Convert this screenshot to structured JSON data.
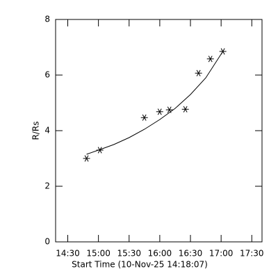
{
  "chart_data": {
    "type": "scatter",
    "xlabel": "Start Time (10-Nov-25 14:18:07)",
    "ylabel": "R/Rs",
    "xlim": [
      858.1,
      1060
    ],
    "xticks": [
      {
        "value": 870,
        "label": "14:30"
      },
      {
        "value": 900,
        "label": "15:00"
      },
      {
        "value": 930,
        "label": "15:30"
      },
      {
        "value": 960,
        "label": "16:00"
      },
      {
        "value": 990,
        "label": "16:30"
      },
      {
        "value": 1020,
        "label": "17:00"
      },
      {
        "value": 1050,
        "label": "17:30"
      }
    ],
    "ylim": [
      0,
      8
    ],
    "yticks": [
      0,
      2,
      4,
      6,
      8
    ],
    "series": [
      {
        "mode": "markers",
        "color": "#000000",
        "x": [
          888.4,
          901.4,
          944.9,
          959.9,
          969.4,
          985.0,
          997.9,
          1009.5,
          1021.7
        ],
        "values": [
          3.0,
          3.3,
          4.47,
          4.68,
          4.75,
          4.77,
          6.07,
          6.58,
          6.85
        ]
      },
      {
        "mode": "line",
        "color": "#000000",
        "x": [
          888.4,
          900,
          915,
          930,
          945,
          960,
          975,
          990,
          1005,
          1021.7
        ],
        "values": [
          3.15,
          3.3,
          3.5,
          3.75,
          4.05,
          4.4,
          4.8,
          5.3,
          5.9,
          6.85
        ]
      }
    ]
  }
}
